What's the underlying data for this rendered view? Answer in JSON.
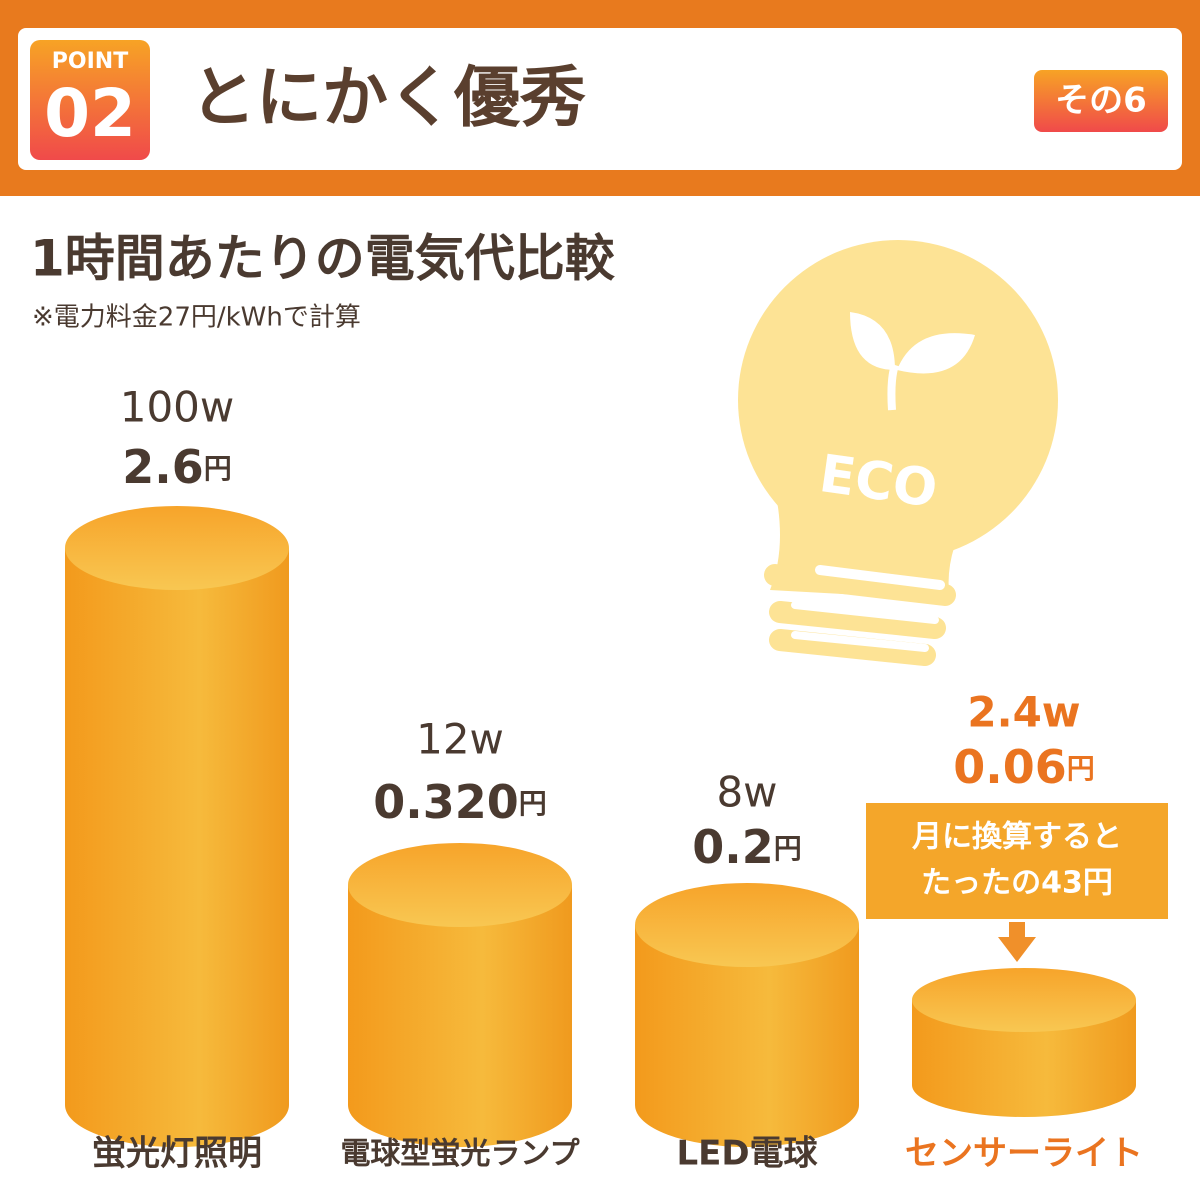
{
  "header": {
    "badge_label": "POINT",
    "badge_number": "02",
    "title": "とにかく優秀",
    "tag": "その6"
  },
  "subtitle": "1時間あたりの電気代比較",
  "note": "※電力料金27円/kWhで計算",
  "eco_label": "ECO",
  "items": [
    {
      "wattage": "100w",
      "cost": "2.6",
      "unit": "円",
      "label": "蛍光灯照明"
    },
    {
      "wattage": "12w",
      "cost": "0.320",
      "unit": "円",
      "label": "電球型蛍光ランプ"
    },
    {
      "wattage": "8w",
      "cost": "0.2",
      "unit": "円",
      "label": "LED電球"
    },
    {
      "wattage": "2.4w",
      "cost": "0.06",
      "unit": "円",
      "label": "センサーライト"
    }
  ],
  "callout": {
    "line1": "月に換算すると",
    "line2": "たったの43円"
  }
}
